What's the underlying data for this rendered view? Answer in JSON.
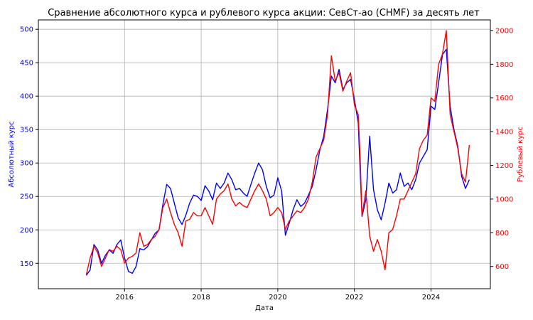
{
  "chart_data": {
    "type": "line",
    "title": "Сравнение абсолютного курса и рублевого курса акции: СевСт-ао (CHMF) за десять лет",
    "xlabel": "Дата",
    "ylabel_left": "Абсолютный курс",
    "ylabel_right": "Рублевый курс",
    "grid": true,
    "x_ticks": [
      "2016",
      "2018",
      "2020",
      "2022",
      "2024"
    ],
    "x_tick_values": [
      2016,
      2018,
      2020,
      2022,
      2024
    ],
    "xlim": [
      2013.75,
      2025.55
    ],
    "left_axis": {
      "ylim": [
        112,
        514
      ],
      "ticks": [
        150,
        200,
        250,
        300,
        350,
        400,
        450,
        500
      ],
      "color": "#0000ff"
    },
    "right_axis": {
      "ylim": [
        468,
        2063
      ],
      "ticks": [
        600,
        800,
        1000,
        1200,
        1400,
        1600,
        1800,
        2000
      ],
      "color": "#ff0000"
    },
    "series": [
      {
        "axis": "left",
        "color": "#0000ff",
        "points": [
          [
            2015.0,
            132
          ],
          [
            2015.1,
            140
          ],
          [
            2015.2,
            178
          ],
          [
            2015.3,
            170
          ],
          [
            2015.4,
            150
          ],
          [
            2015.5,
            162
          ],
          [
            2015.6,
            170
          ],
          [
            2015.7,
            165
          ],
          [
            2015.8,
            178
          ],
          [
            2015.9,
            185
          ],
          [
            2016.0,
            158
          ],
          [
            2016.1,
            138
          ],
          [
            2016.2,
            135
          ],
          [
            2016.3,
            145
          ],
          [
            2016.4,
            172
          ],
          [
            2016.5,
            170
          ],
          [
            2016.6,
            175
          ],
          [
            2016.7,
            185
          ],
          [
            2016.8,
            195
          ],
          [
            2016.9,
            200
          ],
          [
            2017.0,
            238
          ],
          [
            2017.1,
            268
          ],
          [
            2017.2,
            262
          ],
          [
            2017.3,
            240
          ],
          [
            2017.4,
            218
          ],
          [
            2017.5,
            208
          ],
          [
            2017.6,
            222
          ],
          [
            2017.7,
            240
          ],
          [
            2017.8,
            252
          ],
          [
            2017.9,
            250
          ],
          [
            2018.0,
            244
          ],
          [
            2018.1,
            266
          ],
          [
            2018.2,
            258
          ],
          [
            2018.3,
            245
          ],
          [
            2018.4,
            270
          ],
          [
            2018.5,
            262
          ],
          [
            2018.6,
            270
          ],
          [
            2018.7,
            285
          ],
          [
            2018.8,
            275
          ],
          [
            2018.9,
            260
          ],
          [
            2019.0,
            262
          ],
          [
            2019.1,
            255
          ],
          [
            2019.2,
            250
          ],
          [
            2019.3,
            268
          ],
          [
            2019.4,
            285
          ],
          [
            2019.5,
            300
          ],
          [
            2019.6,
            290
          ],
          [
            2019.7,
            265
          ],
          [
            2019.8,
            248
          ],
          [
            2019.9,
            252
          ],
          [
            2020.0,
            278
          ],
          [
            2020.1,
            258
          ],
          [
            2020.2,
            192
          ],
          [
            2020.3,
            210
          ],
          [
            2020.4,
            230
          ],
          [
            2020.5,
            245
          ],
          [
            2020.6,
            235
          ],
          [
            2020.7,
            240
          ],
          [
            2020.8,
            252
          ],
          [
            2020.9,
            265
          ],
          [
            2021.0,
            290
          ],
          [
            2021.1,
            320
          ],
          [
            2021.2,
            340
          ],
          [
            2021.3,
            380
          ],
          [
            2021.4,
            430
          ],
          [
            2021.5,
            420
          ],
          [
            2021.6,
            440
          ],
          [
            2021.7,
            410
          ],
          [
            2021.8,
            420
          ],
          [
            2021.9,
            425
          ],
          [
            2022.0,
            395
          ],
          [
            2022.1,
            360
          ],
          [
            2022.15,
            290
          ],
          [
            2022.2,
            220
          ],
          [
            2022.3,
            245
          ],
          [
            2022.4,
            340
          ],
          [
            2022.5,
            260
          ],
          [
            2022.6,
            230
          ],
          [
            2022.7,
            215
          ],
          [
            2022.8,
            240
          ],
          [
            2022.9,
            270
          ],
          [
            2023.0,
            255
          ],
          [
            2023.1,
            260
          ],
          [
            2023.2,
            285
          ],
          [
            2023.3,
            265
          ],
          [
            2023.4,
            270
          ],
          [
            2023.5,
            260
          ],
          [
            2023.6,
            275
          ],
          [
            2023.7,
            300
          ],
          [
            2023.8,
            310
          ],
          [
            2023.9,
            320
          ],
          [
            2024.0,
            385
          ],
          [
            2024.1,
            380
          ],
          [
            2024.2,
            420
          ],
          [
            2024.3,
            462
          ],
          [
            2024.4,
            470
          ],
          [
            2024.5,
            385
          ],
          [
            2024.6,
            350
          ],
          [
            2024.7,
            325
          ],
          [
            2024.8,
            280
          ],
          [
            2024.9,
            262
          ],
          [
            2025.0,
            275
          ]
        ]
      },
      {
        "axis": "right",
        "color": "#ff0000",
        "points": [
          [
            2015.0,
            550
          ],
          [
            2015.1,
            650
          ],
          [
            2015.2,
            720
          ],
          [
            2015.3,
            680
          ],
          [
            2015.4,
            600
          ],
          [
            2015.5,
            650
          ],
          [
            2015.6,
            700
          ],
          [
            2015.7,
            690
          ],
          [
            2015.8,
            720
          ],
          [
            2015.9,
            700
          ],
          [
            2016.0,
            620
          ],
          [
            2016.1,
            650
          ],
          [
            2016.2,
            660
          ],
          [
            2016.3,
            680
          ],
          [
            2016.4,
            800
          ],
          [
            2016.5,
            720
          ],
          [
            2016.6,
            730
          ],
          [
            2016.7,
            760
          ],
          [
            2016.8,
            780
          ],
          [
            2016.9,
            820
          ],
          [
            2017.0,
            950
          ],
          [
            2017.1,
            1000
          ],
          [
            2017.2,
            920
          ],
          [
            2017.3,
            850
          ],
          [
            2017.4,
            800
          ],
          [
            2017.5,
            720
          ],
          [
            2017.6,
            870
          ],
          [
            2017.7,
            880
          ],
          [
            2017.8,
            920
          ],
          [
            2017.9,
            900
          ],
          [
            2018.0,
            900
          ],
          [
            2018.1,
            950
          ],
          [
            2018.2,
            900
          ],
          [
            2018.3,
            850
          ],
          [
            2018.4,
            1000
          ],
          [
            2018.5,
            1030
          ],
          [
            2018.6,
            1050
          ],
          [
            2018.7,
            1090
          ],
          [
            2018.8,
            1000
          ],
          [
            2018.9,
            960
          ],
          [
            2019.0,
            980
          ],
          [
            2019.1,
            960
          ],
          [
            2019.2,
            950
          ],
          [
            2019.3,
            1000
          ],
          [
            2019.4,
            1050
          ],
          [
            2019.5,
            1090
          ],
          [
            2019.6,
            1050
          ],
          [
            2019.7,
            1000
          ],
          [
            2019.8,
            900
          ],
          [
            2019.9,
            920
          ],
          [
            2020.0,
            950
          ],
          [
            2020.1,
            920
          ],
          [
            2020.2,
            820
          ],
          [
            2020.3,
            870
          ],
          [
            2020.4,
            900
          ],
          [
            2020.5,
            930
          ],
          [
            2020.6,
            920
          ],
          [
            2020.7,
            950
          ],
          [
            2020.8,
            1000
          ],
          [
            2020.9,
            1100
          ],
          [
            2021.0,
            1250
          ],
          [
            2021.1,
            1300
          ],
          [
            2021.2,
            1350
          ],
          [
            2021.3,
            1500
          ],
          [
            2021.4,
            1850
          ],
          [
            2021.5,
            1700
          ],
          [
            2021.6,
            1750
          ],
          [
            2021.7,
            1640
          ],
          [
            2021.8,
            1700
          ],
          [
            2021.9,
            1750
          ],
          [
            2022.0,
            1560
          ],
          [
            2022.1,
            1500
          ],
          [
            2022.15,
            1260
          ],
          [
            2022.2,
            900
          ],
          [
            2022.3,
            1050
          ],
          [
            2022.4,
            780
          ],
          [
            2022.5,
            690
          ],
          [
            2022.6,
            760
          ],
          [
            2022.7,
            690
          ],
          [
            2022.8,
            580
          ],
          [
            2022.9,
            800
          ],
          [
            2023.0,
            820
          ],
          [
            2023.1,
            900
          ],
          [
            2023.2,
            1000
          ],
          [
            2023.3,
            1000
          ],
          [
            2023.4,
            1050
          ],
          [
            2023.5,
            1100
          ],
          [
            2023.6,
            1150
          ],
          [
            2023.7,
            1300
          ],
          [
            2023.8,
            1350
          ],
          [
            2023.9,
            1380
          ],
          [
            2024.0,
            1600
          ],
          [
            2024.1,
            1580
          ],
          [
            2024.2,
            1800
          ],
          [
            2024.3,
            1860
          ],
          [
            2024.4,
            2000
          ],
          [
            2024.5,
            1500
          ],
          [
            2024.6,
            1400
          ],
          [
            2024.7,
            1300
          ],
          [
            2024.8,
            1150
          ],
          [
            2024.9,
            1100
          ],
          [
            2025.0,
            1320
          ]
        ]
      }
    ]
  }
}
